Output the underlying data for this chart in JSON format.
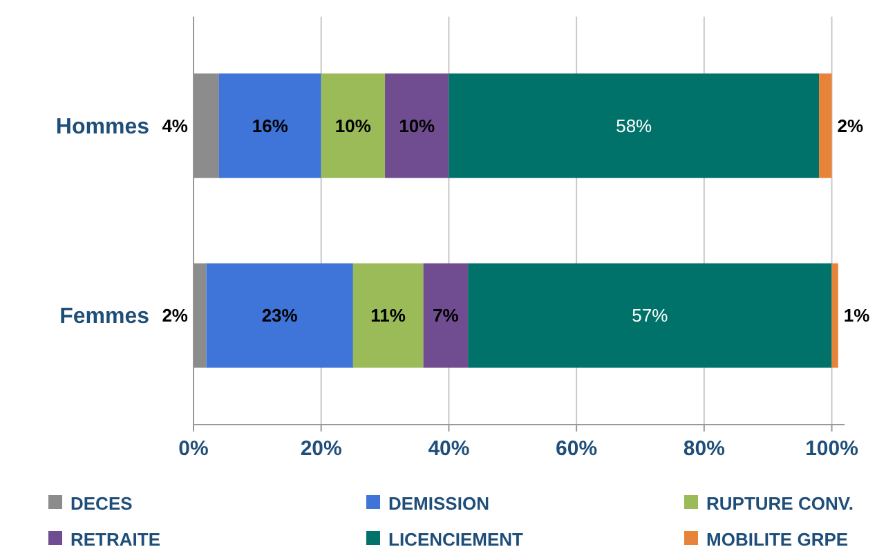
{
  "chart_data": {
    "type": "bar",
    "orientation": "horizontal",
    "stacked": true,
    "categories": [
      "Hommes",
      "Femmes"
    ],
    "xlim": [
      0,
      102
    ],
    "xticks": [
      {
        "value": 0,
        "label": "0%"
      },
      {
        "value": 20,
        "label": "20%"
      },
      {
        "value": 40,
        "label": "40%"
      },
      {
        "value": 60,
        "label": "60%"
      },
      {
        "value": 80,
        "label": "80%"
      },
      {
        "value": 100,
        "label": "100%"
      }
    ],
    "grid": "x",
    "legend": "bottom",
    "series": [
      {
        "name": "DECES",
        "color": "#8c8c8c",
        "values": [
          4,
          2
        ],
        "value_labels": [
          "4%",
          "2%"
        ]
      },
      {
        "name": "DEMISSION",
        "color": "#3f74d8",
        "values": [
          16,
          23
        ],
        "value_labels": [
          "16%",
          "23%"
        ]
      },
      {
        "name": "RUPTURE CONV.",
        "color": "#9bbb59",
        "values": [
          10,
          11
        ],
        "value_labels": [
          "10%",
          "11%"
        ]
      },
      {
        "name": "RETRAITE",
        "color": "#704d90",
        "values": [
          10,
          7
        ],
        "value_labels": [
          "10%",
          "7%"
        ]
      },
      {
        "name": "LICENCIEMENT",
        "color": "#00726a",
        "values": [
          58,
          57
        ],
        "value_labels": [
          "58%",
          "57%"
        ]
      },
      {
        "name": "MOBILITE GRPE",
        "color": "#e8843a",
        "values": [
          2,
          1
        ],
        "value_labels": [
          "2%",
          "1%"
        ]
      }
    ]
  }
}
